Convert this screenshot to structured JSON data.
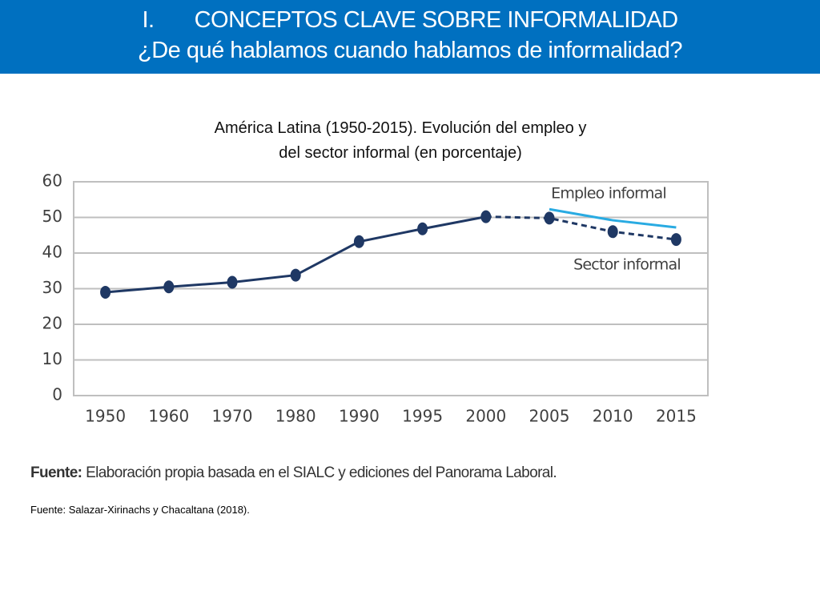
{
  "header": {
    "number": "I.",
    "title": "CONCEPTOS CLAVE SOBRE INFORMALIDAD",
    "subtitle": "¿De qué hablamos cuando hablamos de informalidad?"
  },
  "chart_data": {
    "type": "line",
    "title": "América Latina (1950-2015). Evolución del empleo y del sector informal (en porcentaje)",
    "categories": [
      "1950",
      "1960",
      "1970",
      "1980",
      "1990",
      "1995",
      "2000",
      "2005",
      "2010",
      "2015"
    ],
    "series": [
      {
        "name": "Sector informal",
        "color": "#1f3864",
        "values": [
          29,
          30.5,
          31.8,
          33.8,
          43.2,
          46.8,
          50.2,
          49.8,
          46,
          43.8
        ],
        "markers": true,
        "dash_start": "2000"
      },
      {
        "name": "Empleo informal",
        "color": "#29abe2",
        "values": [
          null,
          null,
          null,
          null,
          null,
          null,
          null,
          52.3,
          49.2,
          47.2
        ],
        "markers": false
      }
    ],
    "ylim": [
      0,
      60
    ],
    "yticks": [
      0,
      10,
      20,
      30,
      40,
      50,
      60
    ],
    "grid": true
  },
  "source": {
    "label": "Fuente:",
    "text": "Elaboración propia basada en el SIALC y ediciones del Panorama Laboral."
  },
  "footnote": "Fuente: Salazar-Xirinachs y Chacaltana (2018)."
}
